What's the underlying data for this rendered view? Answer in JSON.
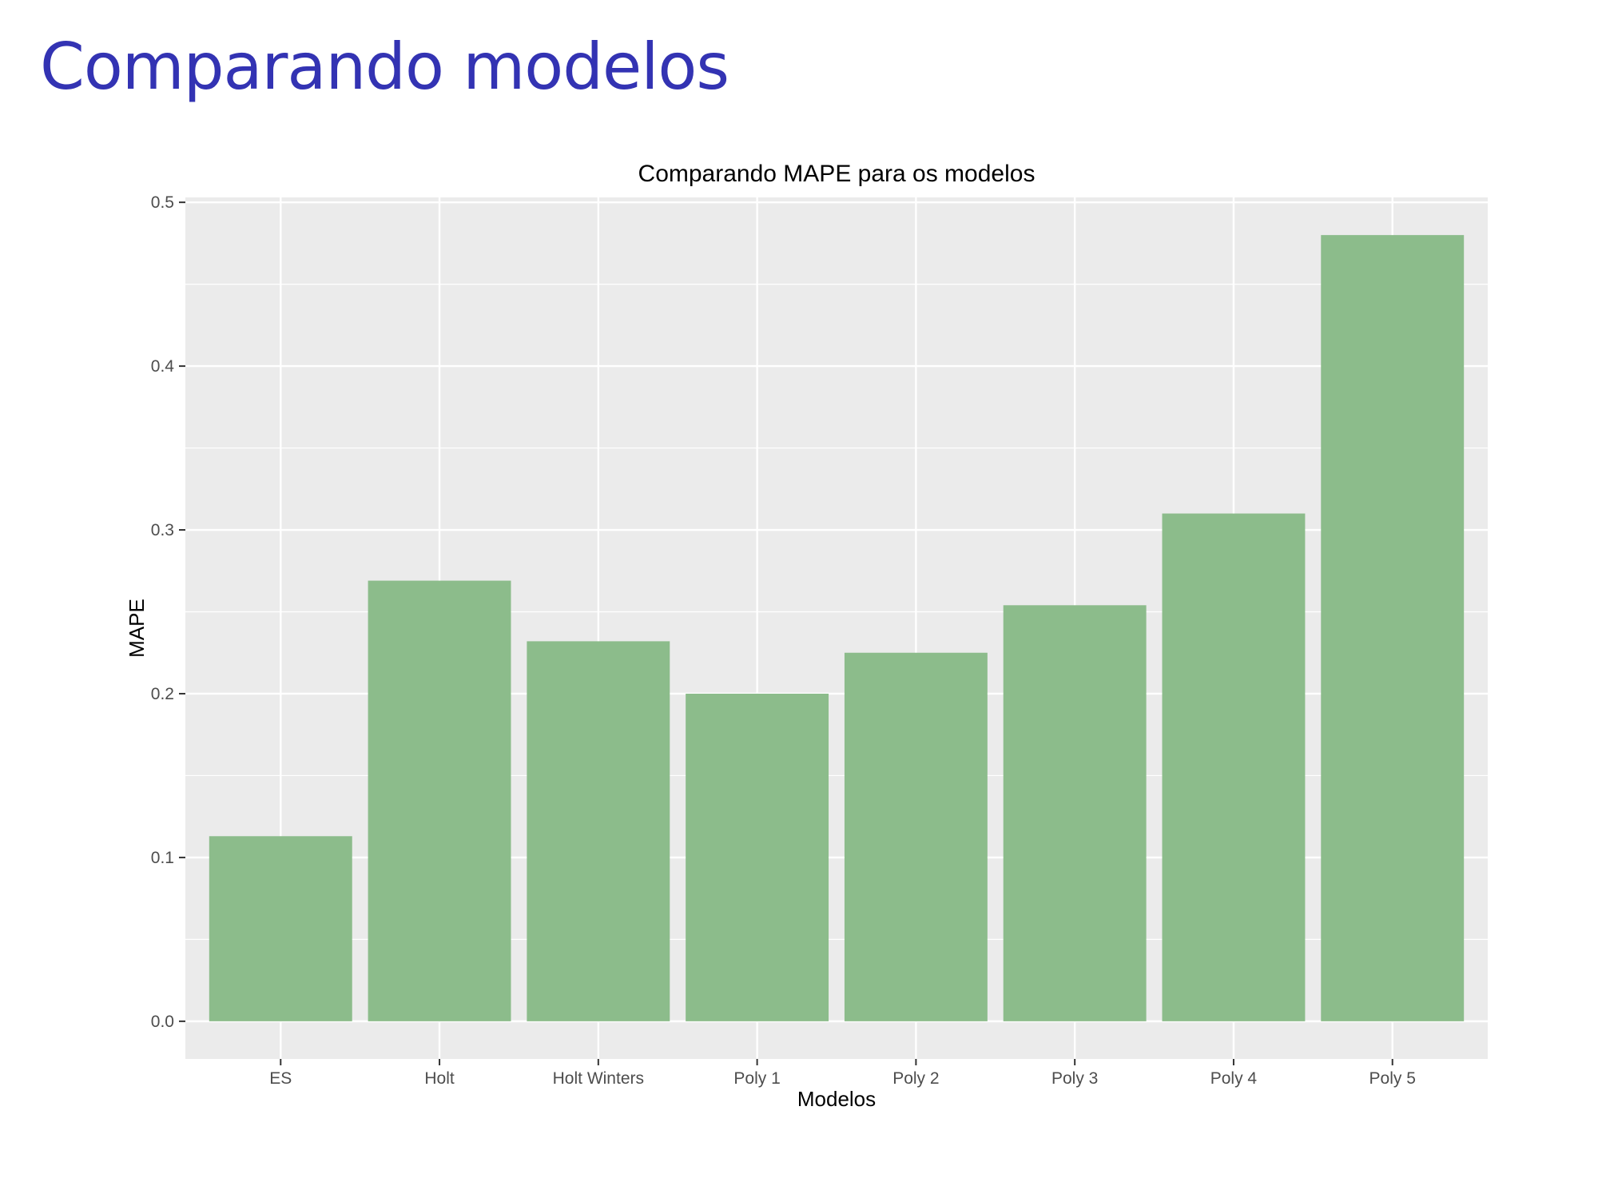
{
  "slide": {
    "title": "Comparando modelos"
  },
  "colors": {
    "title": "#3333b3",
    "panel_background": "#ebebeb",
    "gridline": "#ffffff",
    "bar_fill": "#88ba87",
    "tick_text": "#4d4d4d",
    "tick_mark": "#333333"
  },
  "chart_data": {
    "type": "bar",
    "title": "Comparando MAPE para os modelos",
    "xlabel": "Modelos",
    "ylabel": "MAPE",
    "categories": [
      "ES",
      "Holt",
      "Holt Winters",
      "Poly 1",
      "Poly 2",
      "Poly 3",
      "Poly 4",
      "Poly 5"
    ],
    "values": [
      0.113,
      0.269,
      0.232,
      0.2,
      0.225,
      0.254,
      0.31,
      0.48
    ],
    "ylim": [
      -0.023,
      0.503
    ],
    "yticks": [
      0.0,
      0.1,
      0.2,
      0.3,
      0.4,
      0.5
    ],
    "ytick_labels": [
      "0.0",
      "0.1",
      "0.2",
      "0.3",
      "0.4",
      "0.5"
    ],
    "grid": true,
    "legend": "none"
  }
}
